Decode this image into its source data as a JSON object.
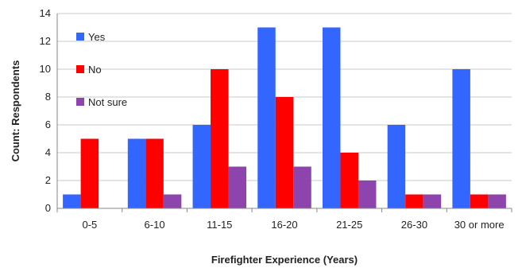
{
  "chart_data": {
    "type": "bar",
    "title": "",
    "xlabel": "Firefighter Experience (Years)",
    "ylabel": "Count: Respondents",
    "ylim": [
      0,
      14
    ],
    "yticks": [
      0,
      2,
      4,
      6,
      8,
      10,
      12,
      14
    ],
    "grid": true,
    "legend": "top-left",
    "categories": [
      "0-5",
      "6-10",
      "11-15",
      "16-20",
      "21-25",
      "26-30",
      "30 or more"
    ],
    "series": [
      {
        "name": "Yes",
        "color": "#3366ff",
        "values": [
          1,
          5,
          6,
          13,
          13,
          6,
          10
        ]
      },
      {
        "name": "No",
        "color": "#ff0000",
        "values": [
          5,
          5,
          10,
          8,
          4,
          1,
          1
        ]
      },
      {
        "name": "Not sure",
        "color": "#8e44ad",
        "values": [
          0,
          1,
          3,
          3,
          2,
          1,
          1
        ]
      }
    ]
  }
}
